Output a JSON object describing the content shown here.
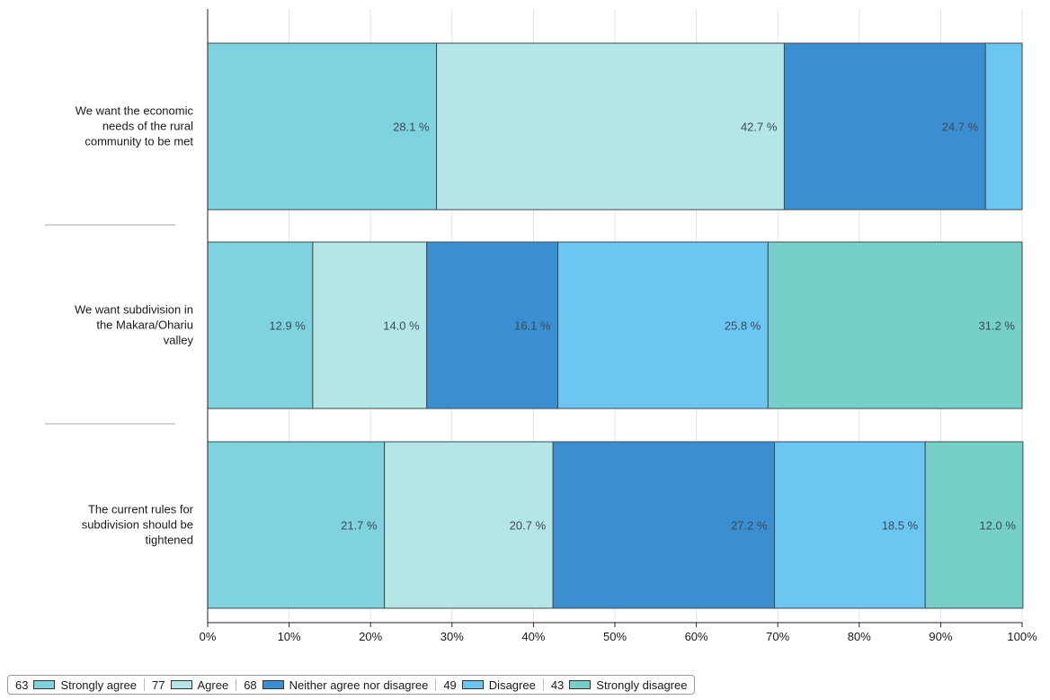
{
  "chart_data": {
    "type": "bar",
    "orientation": "horizontal",
    "stacked": true,
    "percent": true,
    "categories": [
      "We want the economic needs of the rural community to be met",
      "We want subdivision in the Makara/Ohariu valley",
      "The current rules for subdivision should be tightened"
    ],
    "category_lines": [
      [
        "We want the economic",
        "needs of the rural",
        "community to be met"
      ],
      [
        "We want subdivision in",
        "the Makara/Ohariu",
        "valley"
      ],
      [
        "The current rules for",
        "subdivision should be",
        "tightened"
      ]
    ],
    "series": [
      {
        "name": "Strongly agree",
        "count": "63",
        "values": [
          28.1,
          12.9,
          21.7
        ],
        "labels": [
          "28.1 %",
          "12.9 %",
          "21.7 %"
        ],
        "color": "#7fd3de"
      },
      {
        "name": "Agree",
        "count": "77",
        "values": [
          42.7,
          14.0,
          20.7
        ],
        "labels": [
          "42.7 %",
          "14.0 %",
          "20.7 %"
        ],
        "color": "#b4e6e8"
      },
      {
        "name": "Neither agree nor disagree",
        "count": "68",
        "values": [
          24.7,
          16.1,
          27.2
        ],
        "labels": [
          "24.7 %",
          "16.1 %",
          "27.2 %"
        ],
        "color": "#3b8fd0"
      },
      {
        "name": "Disagree",
        "count": "49",
        "values": [
          4.5,
          25.8,
          18.5
        ],
        "labels": [
          "",
          "25.8 %",
          "18.5 %"
        ],
        "color": "#6cc6f2"
      },
      {
        "name": "Strongly disagree",
        "count": "43",
        "values": [
          0,
          31.2,
          12.0
        ],
        "labels": [
          "",
          "31.2 %",
          "12.0 %"
        ],
        "color": "#76cfc8"
      }
    ],
    "x_ticks": [
      "0%",
      "10%",
      "20%",
      "30%",
      "40%",
      "50%",
      "60%",
      "70%",
      "80%",
      "90%",
      "100%"
    ],
    "xlim": [
      0,
      100
    ],
    "xlabel": "",
    "ylabel": "",
    "title": "",
    "grid": true,
    "legend_position": "bottom"
  }
}
